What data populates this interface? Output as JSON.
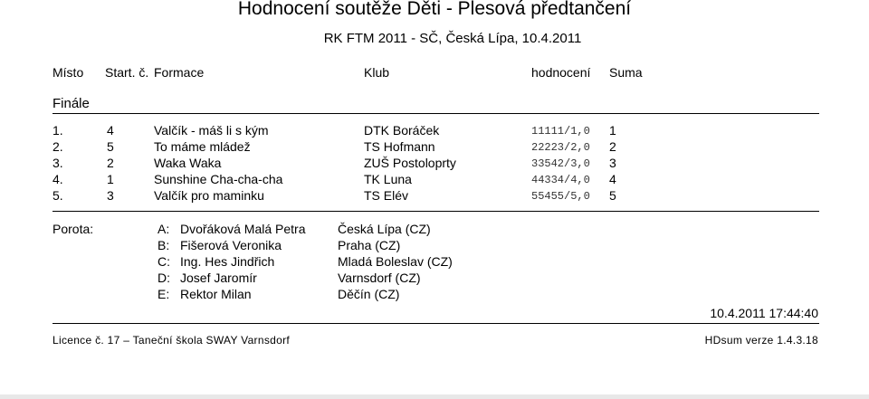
{
  "title": "Hodnocení soutěže Děti - Plesová předtančení",
  "subtitle": "RK FTM 2011 - SČ, Česká Lípa, 10.4.2011",
  "headers": {
    "misto": "Místo",
    "start": "Start. č.",
    "formace": "Formace",
    "klub": "Klub",
    "hodnoceni": "hodnocení",
    "suma": "Suma"
  },
  "section": "Finále",
  "results": [
    {
      "place": "1.",
      "start": "4",
      "formace": "Valčík - máš li s kým",
      "klub": "DTK Boráček",
      "hodnoceni": "11111/1,0",
      "suma": "1"
    },
    {
      "place": "2.",
      "start": "5",
      "formace": "To máme mládež",
      "klub": "TS Hofmann",
      "hodnoceni": "22223/2,0",
      "suma": "2"
    },
    {
      "place": "3.",
      "start": "2",
      "formace": "Waka Waka",
      "klub": "ZUŠ Postoloprty",
      "hodnoceni": "33542/3,0",
      "suma": "3"
    },
    {
      "place": "4.",
      "start": "1",
      "formace": "Sunshine Cha-cha-cha",
      "klub": "TK Luna",
      "hodnoceni": "44334/4,0",
      "suma": "4"
    },
    {
      "place": "5.",
      "start": "3",
      "formace": "Valčík pro maminku",
      "klub": "TS Elév",
      "hodnoceni": "55455/5,0",
      "suma": "5"
    }
  ],
  "porota_label": "Porota:",
  "judges": [
    {
      "letter": "A:",
      "name": "Dvořáková Malá Petra",
      "city": "Česká Lípa (CZ)"
    },
    {
      "letter": "B:",
      "name": "Fišerová Veronika",
      "city": "Praha (CZ)"
    },
    {
      "letter": "C:",
      "name": "Ing. Hes Jindřich",
      "city": "Mladá Boleslav (CZ)"
    },
    {
      "letter": "D:",
      "name": "Josef Jaromír",
      "city": "Varnsdorf (CZ)"
    },
    {
      "letter": "E:",
      "name": "Rektor Milan",
      "city": "Děčín (CZ)"
    }
  ],
  "timestamp": "10.4.2011 17:44:40",
  "footer_left": "Licence č. 17 – Taneční škola SWAY Varnsdorf",
  "footer_right": "HDsum verze 1.4.3.18"
}
